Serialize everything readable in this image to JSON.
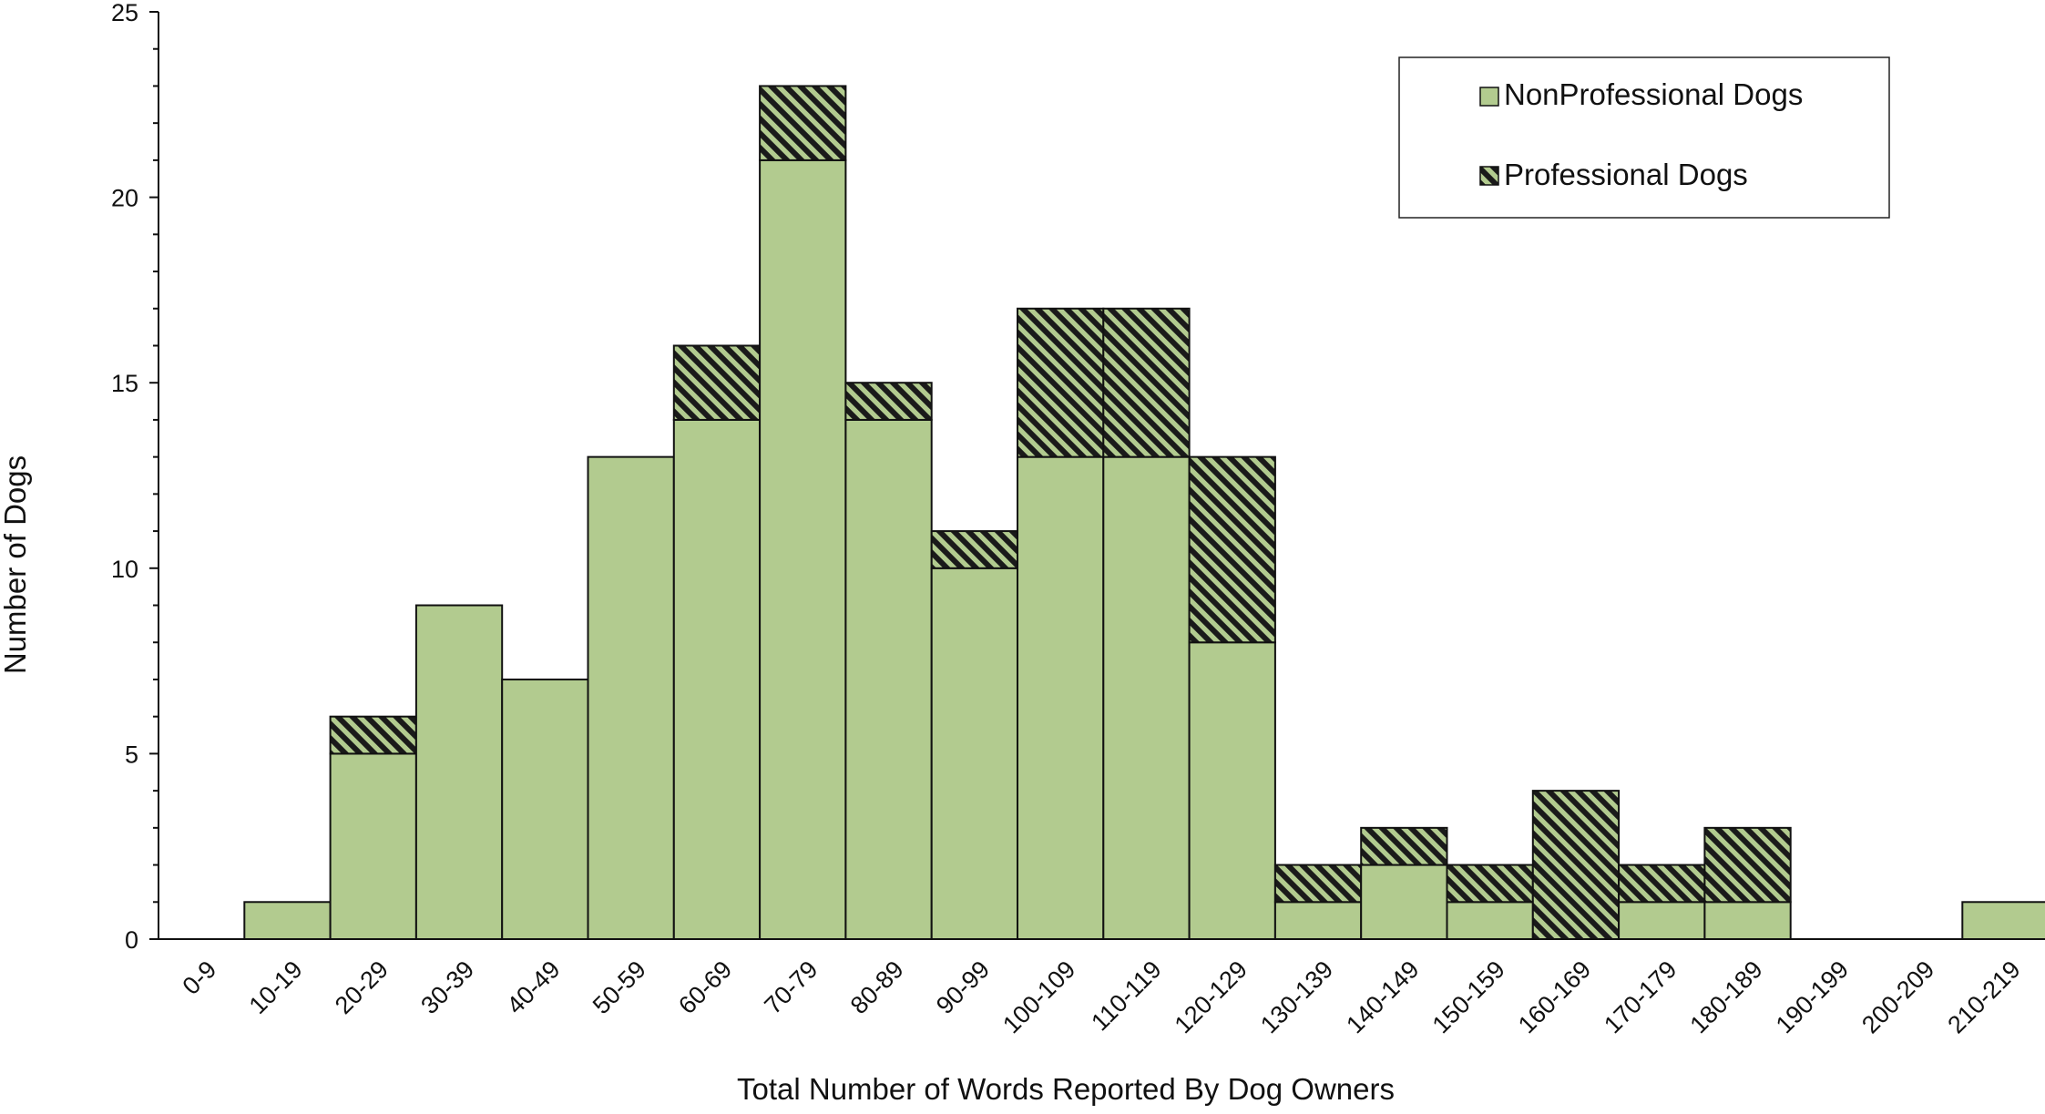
{
  "chart_data": {
    "type": "bar",
    "stacked": true,
    "title": "",
    "xlabel": "Total Number of Words Reported By Dog Owners",
    "ylabel": "Number of Dogs",
    "ylim": [
      0,
      25
    ],
    "y_ticks": [
      0,
      5,
      10,
      15,
      20,
      25
    ],
    "y_minor_step": 1,
    "grid": false,
    "legend_position": "top-right",
    "categories": [
      "0-9",
      "10-19",
      "20-29",
      "30-39",
      "40-49",
      "50-59",
      "60-69",
      "70-79",
      "80-89",
      "90-99",
      "100-109",
      "110-119",
      "120-129",
      "130-139",
      "140-149",
      "150-159",
      "160-169",
      "170-179",
      "180-189",
      "190-199",
      "200-209",
      "210-219"
    ],
    "series": [
      {
        "name": "NonProfessional Dogs",
        "pattern": "solid",
        "color": "#b2cb8f",
        "values": [
          0,
          1,
          5,
          9,
          7,
          13,
          14,
          21,
          14,
          10,
          13,
          13,
          8,
          1,
          2,
          1,
          0,
          1,
          1,
          0,
          0,
          1
        ]
      },
      {
        "name": "Professional Dogs",
        "pattern": "diagonal-hatch",
        "color": "#b2cb8f",
        "values": [
          0,
          0,
          1,
          0,
          0,
          0,
          2,
          2,
          1,
          1,
          4,
          4,
          5,
          1,
          1,
          1,
          4,
          1,
          2,
          0,
          0,
          0
        ]
      }
    ],
    "colors": {
      "bar_fill": "#b2cb8f",
      "hatch": "#1a1a1a",
      "stroke": "#111111"
    }
  }
}
